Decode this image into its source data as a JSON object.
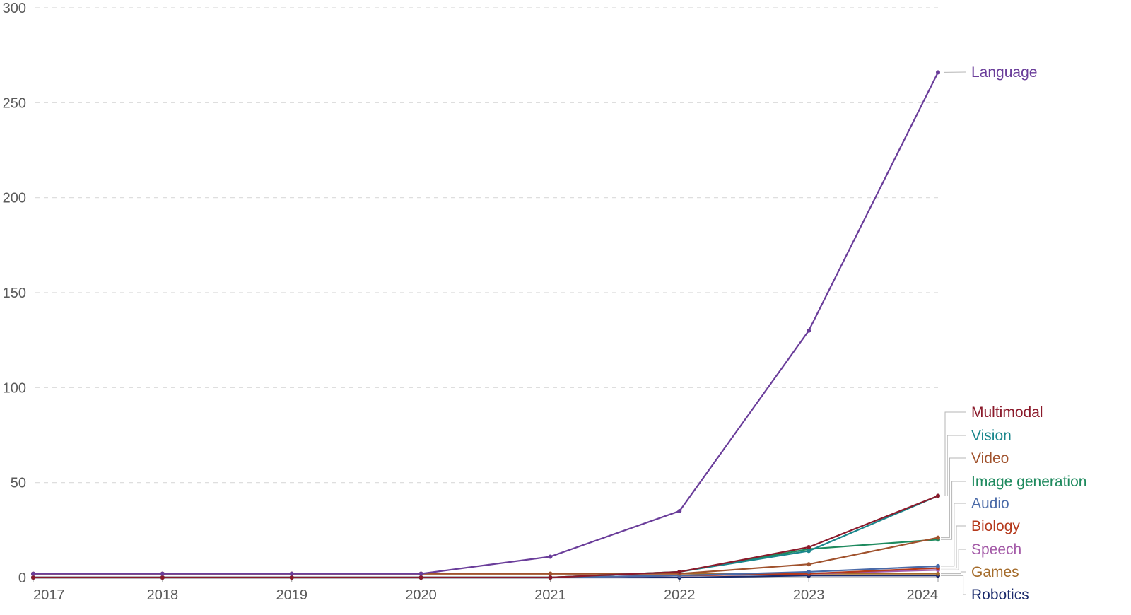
{
  "chart_data": {
    "type": "line",
    "title": "",
    "xlabel": "",
    "ylabel": "",
    "x": [
      2017,
      2018,
      2019,
      2020,
      2021,
      2022,
      2023,
      2024
    ],
    "x_ticks": [
      "2017",
      "2018",
      "2019",
      "2020",
      "2021",
      "2022",
      "2023",
      "2024"
    ],
    "y_ticks": [
      "0",
      "50",
      "100",
      "150",
      "200",
      "250",
      "300"
    ],
    "ylim": [
      0,
      300
    ],
    "grid": "horizontal-dashed",
    "legend": "right-end-labels",
    "series": [
      {
        "name": "Language",
        "color": "#6a3d9a",
        "values": [
          2,
          2,
          2,
          2,
          11,
          35,
          130,
          266
        ]
      },
      {
        "name": "Multimodal",
        "color": "#8b1a2b",
        "values": [
          0,
          0,
          0,
          0,
          0,
          3,
          16,
          43
        ]
      },
      {
        "name": "Vision",
        "color": "#19868c",
        "values": [
          0,
          0,
          0,
          0,
          0,
          3,
          14,
          43
        ]
      },
      {
        "name": "Video",
        "color": "#a0522d",
        "values": [
          2,
          2,
          2,
          2,
          2,
          2,
          7,
          21
        ]
      },
      {
        "name": "Image generation",
        "color": "#1e8a5e",
        "values": [
          0,
          0,
          0,
          0,
          0,
          3,
          15,
          20
        ]
      },
      {
        "name": "Audio",
        "color": "#4a6aa8",
        "values": [
          0,
          0,
          0,
          0,
          0,
          1,
          3,
          6
        ]
      },
      {
        "name": "Biology",
        "color": "#b5391c",
        "values": [
          0,
          0,
          0,
          0,
          0,
          1,
          2,
          5
        ]
      },
      {
        "name": "Speech",
        "color": "#a45ba8",
        "values": [
          0,
          0,
          0,
          0,
          0,
          1,
          2,
          4
        ]
      },
      {
        "name": "Games",
        "color": "#a46b2a",
        "values": [
          2,
          2,
          2,
          2,
          2,
          2,
          2,
          2
        ]
      },
      {
        "name": "Robotics",
        "color": "#1a2a6c",
        "values": [
          0,
          0,
          0,
          0,
          0,
          0,
          1,
          1
        ]
      }
    ]
  }
}
